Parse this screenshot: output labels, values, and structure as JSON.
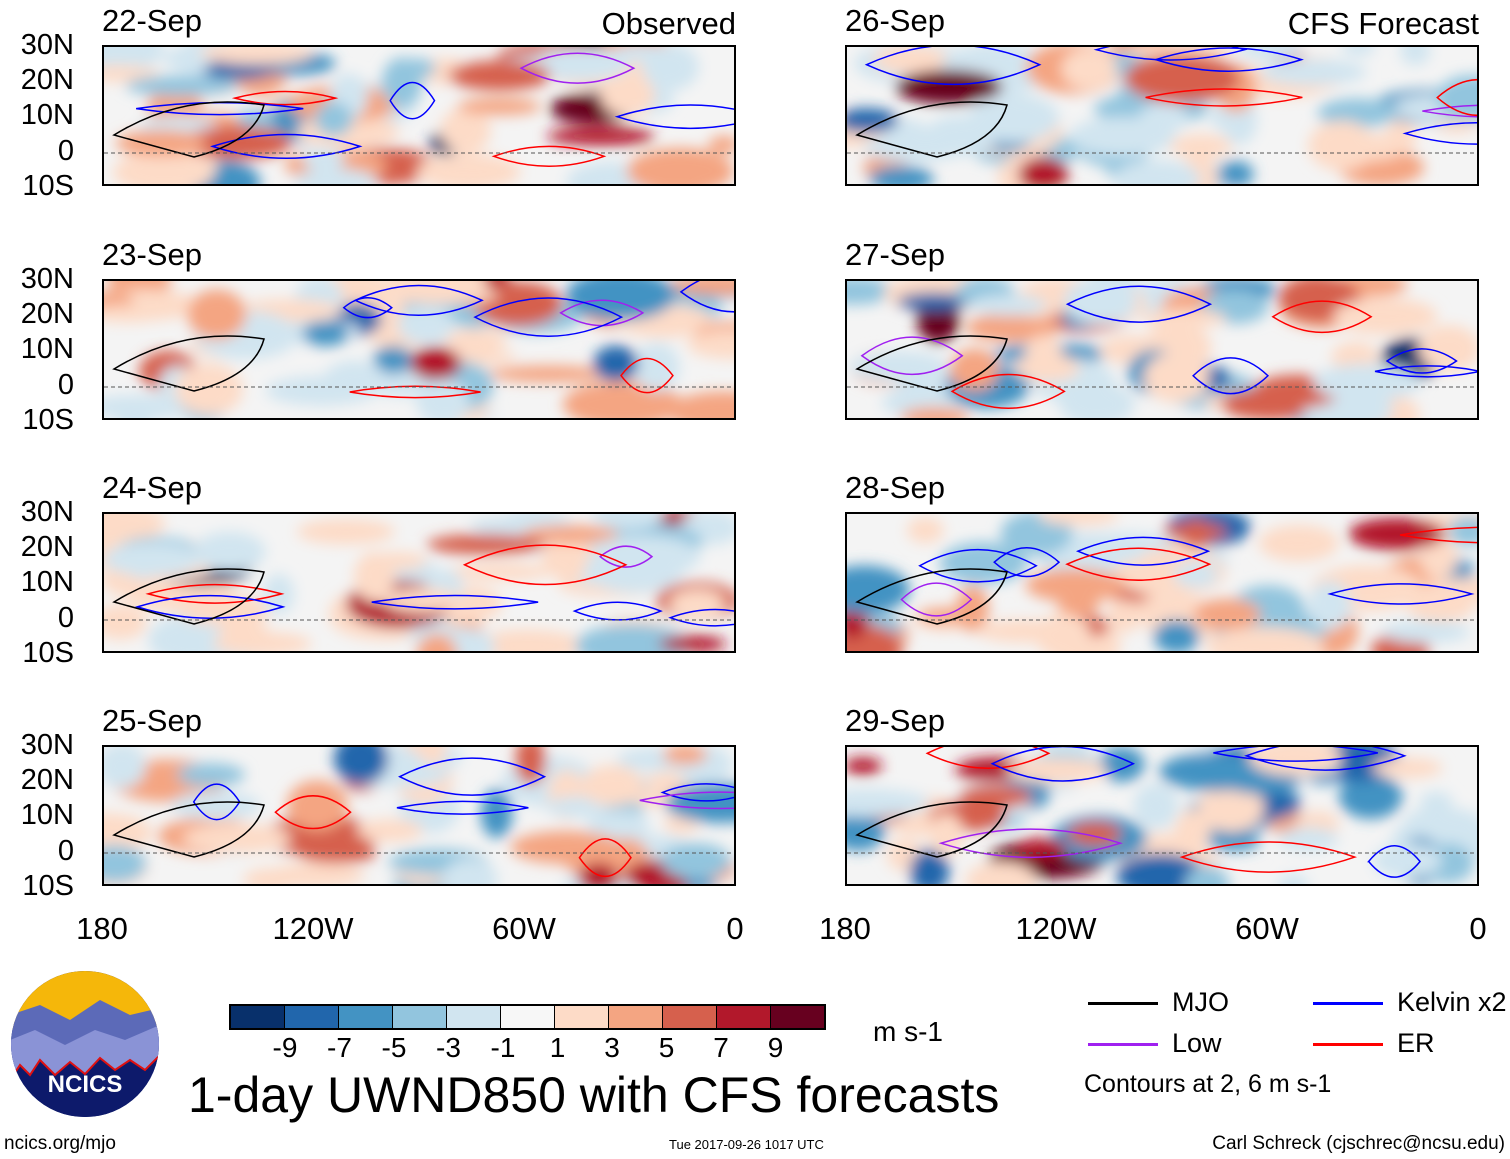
{
  "panels": [
    {
      "date": "22-Sep",
      "tag": "Observed",
      "seed": 1
    },
    {
      "date": "23-Sep",
      "tag": "",
      "seed": 2
    },
    {
      "date": "24-Sep",
      "tag": "",
      "seed": 3
    },
    {
      "date": "25-Sep",
      "tag": "",
      "seed": 4
    },
    {
      "date": "26-Sep",
      "tag": "CFS Forecast",
      "seed": 5
    },
    {
      "date": "27-Sep",
      "tag": "",
      "seed": 6
    },
    {
      "date": "28-Sep",
      "tag": "",
      "seed": 7
    },
    {
      "date": "29-Sep",
      "tag": "",
      "seed": 8
    }
  ],
  "lat_ticks": [
    "30N",
    "20N",
    "10N",
    "0",
    "10S"
  ],
  "lon_ticks": [
    "180",
    "120W",
    "60W",
    "0"
  ],
  "colorbar": {
    "colors": [
      "#08306b",
      "#2166ac",
      "#4393c3",
      "#92c5de",
      "#d1e5f0",
      "#f7f7f7",
      "#fddbc7",
      "#f4a582",
      "#d6604d",
      "#b2182b",
      "#67001f"
    ],
    "labels": [
      "-9",
      "-7",
      "-5",
      "-3",
      "-1",
      "1",
      "3",
      "5",
      "7",
      "9"
    ],
    "units": "m s-1"
  },
  "legend": {
    "items": [
      {
        "label": "MJO",
        "color": "#000000"
      },
      {
        "label": "Kelvin x2",
        "color": "#0000ff"
      },
      {
        "label": "Low",
        "color": "#a020f0"
      },
      {
        "label": "ER",
        "color": "#ff0000"
      }
    ],
    "note": "Contours at 2, 6 m s-1"
  },
  "title": "1-day UWND850 with CFS forecasts",
  "logo_text": "NCICS",
  "footer": {
    "left": "ncics.org/mjo",
    "center": "Tue 2017-09-26 1017 UTC",
    "right": "Carl Schreck (cjschrec@ncsu.edu)"
  }
}
